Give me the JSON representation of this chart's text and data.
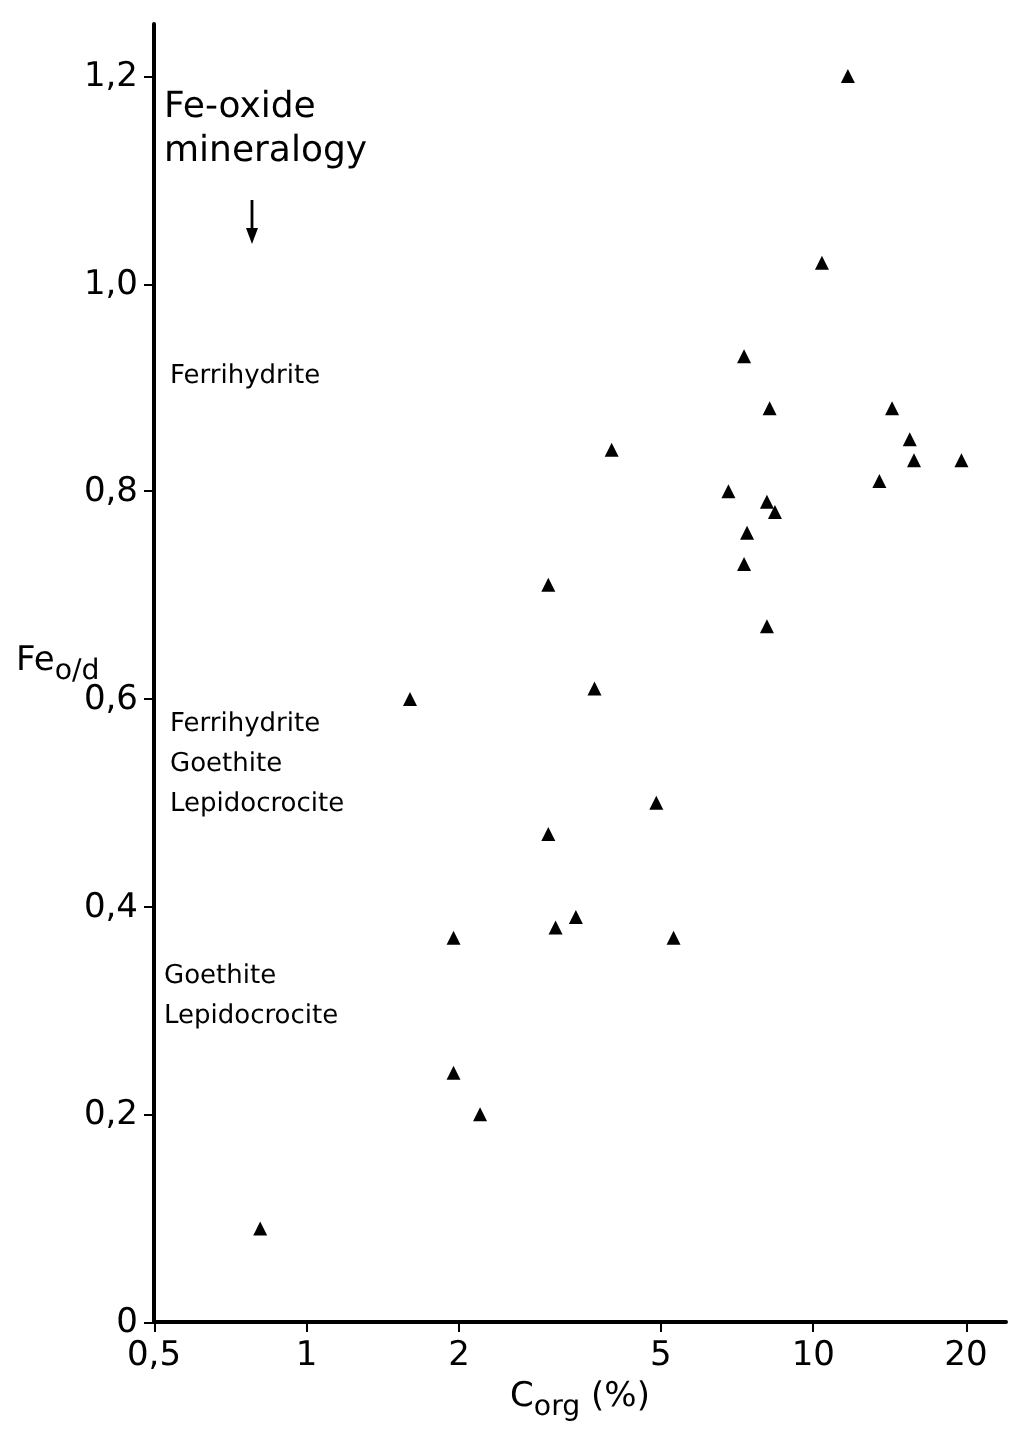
{
  "chart_data": {
    "type": "scatter",
    "xlabel": "C$_{org}$ (%)",
    "ylabel": "Fe$_{o/d}$",
    "annotations": [
      "Fe-oxide\nmineralogy",
      "Ferrihydrite",
      "Ferrihydrite\nGoethite\nLepidocrocite",
      "Goethite\nLepidocrocite"
    ],
    "x": [
      11.7,
      10.4,
      7.3,
      8.2,
      14.3,
      15.5,
      15.8,
      19.6,
      13.5,
      4.0,
      6.8,
      8.1,
      8.4,
      7.4,
      7.3,
      3.0,
      8.1,
      3.7,
      1.6,
      4.9,
      3.0,
      3.4,
      3.1,
      1.95,
      5.3,
      1.95,
      2.2,
      0.81
    ],
    "values": [
      1.2,
      1.02,
      0.93,
      0.88,
      0.88,
      0.85,
      0.83,
      0.83,
      0.81,
      0.84,
      0.8,
      0.79,
      0.78,
      0.76,
      0.73,
      0.71,
      0.67,
      0.61,
      0.6,
      0.5,
      0.47,
      0.39,
      0.38,
      0.37,
      0.37,
      0.24,
      0.2,
      0.09
    ],
    "color": "#000000",
    "marker": "triangle",
    "log": "x",
    "grid": false,
    "xlim": [
      0.5,
      24
    ],
    "xticks": [
      {
        "value": 0.5,
        "label": "0,5"
      },
      1,
      2,
      5,
      10,
      20
    ],
    "ylim": [
      0,
      1.25
    ],
    "yticks": [
      0,
      {
        "value": 0.2,
        "label": "0,2"
      },
      {
        "value": 0.4,
        "label": "0,4"
      },
      {
        "value": 0.6,
        "label": "0,6"
      },
      {
        "value": 0.8,
        "label": "0,8"
      },
      {
        "value": 1.0,
        "label": "1,0"
      },
      {
        "value": 1.2,
        "label": "1,2"
      }
    ]
  }
}
